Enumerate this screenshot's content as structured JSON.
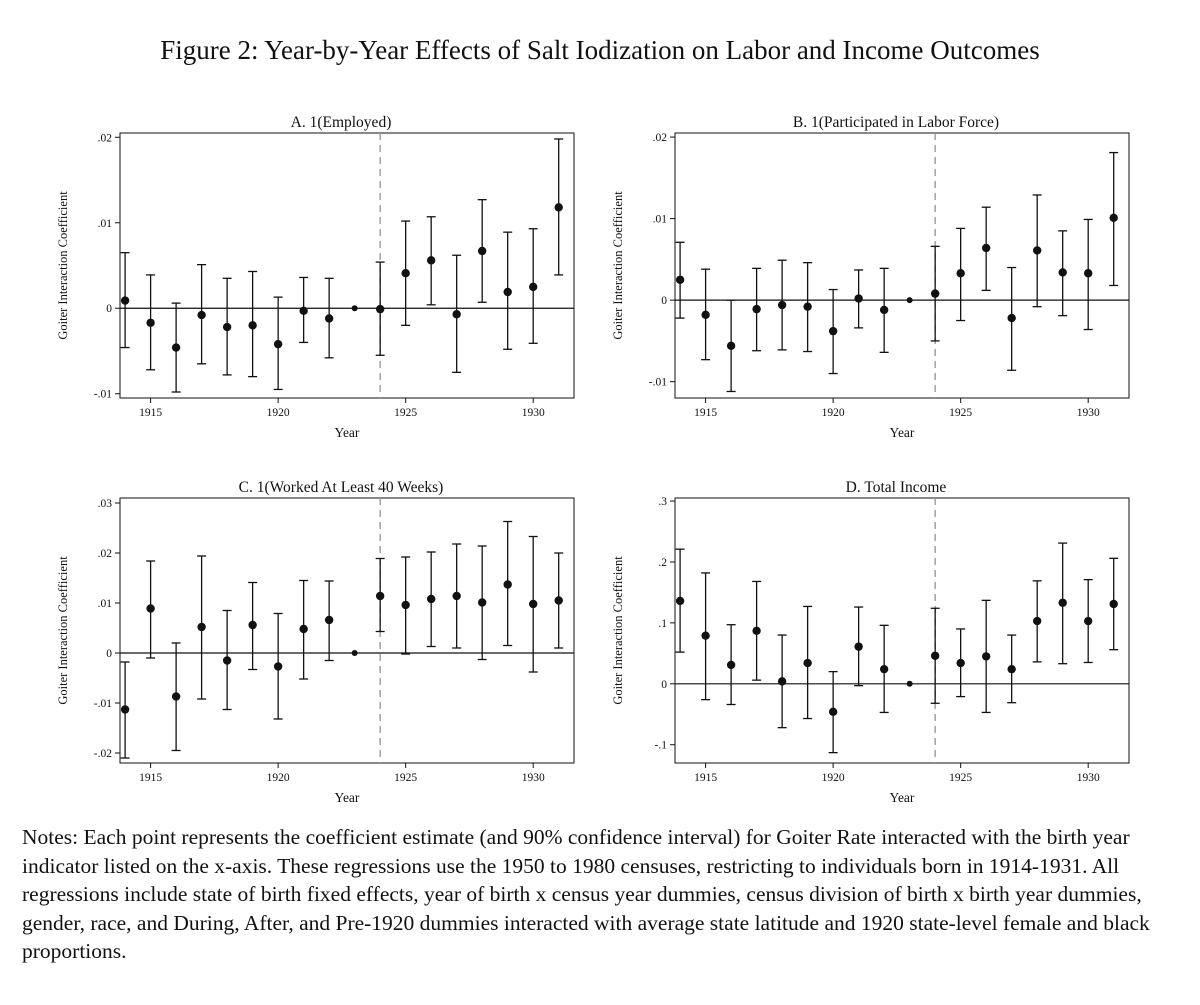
{
  "figure_title": "Figure 2: Year-by-Year Effects of Salt Iodization on Labor and Income Outcomes",
  "notes": "Notes: Each point represents the coefficient estimate (and 90% confidence interval) for Goiter Rate interacted with the birth year indicator listed on the x-axis. These regressions use the 1950 to 1980 censuses, restricting to individuals born in 1914-1931. All regressions include state of birth fixed effects, year of birth x census year dummies, census division of birth x birth year dummies, gender, race, and During, After, and Pre-1920 dummies interacted with average state latitude and 1920 state-level female and black proportions.",
  "colors": {
    "ink": "#111111",
    "refline": "#999999"
  },
  "chart_data": [
    {
      "id": "A",
      "type": "scatter",
      "title": "A. 1(Employed)",
      "xlabel": "Year",
      "ylabel": "Goiter Interaction Coefficient",
      "xlim": [
        1913.8,
        1931.6
      ],
      "ylim": [
        -0.0105,
        0.0205
      ],
      "xticks": [
        1915,
        1920,
        1925,
        1930
      ],
      "xtick_labels": [
        "1915",
        "1920",
        "1925",
        "1930"
      ],
      "yticks": [
        -0.01,
        0,
        0.01,
        0.02
      ],
      "ytick_labels": [
        "-.01",
        "0",
        ".01",
        ".02"
      ],
      "vline": 1924,
      "years": [
        1914,
        1915,
        1916,
        1917,
        1918,
        1919,
        1920,
        1921,
        1922,
        1923,
        1924,
        1925,
        1926,
        1927,
        1928,
        1929,
        1930,
        1931
      ],
      "estimates": [
        0.0009,
        -0.0017,
        -0.0046,
        -0.0008,
        -0.0022,
        -0.002,
        -0.0042,
        -0.0003,
        -0.0012,
        0.0,
        -0.0001,
        0.0041,
        0.0056,
        -0.0007,
        0.0067,
        0.0019,
        0.0025,
        0.0118
      ],
      "ci_lower": [
        -0.0046,
        -0.0072,
        -0.0098,
        -0.0065,
        -0.0078,
        -0.008,
        -0.0095,
        -0.004,
        -0.0058,
        0.0,
        -0.0055,
        -0.002,
        0.0004,
        -0.0075,
        0.0007,
        -0.0048,
        -0.0041,
        0.0039
      ],
      "ci_upper": [
        0.0065,
        0.0039,
        0.0006,
        0.0051,
        0.0035,
        0.0043,
        0.0013,
        0.0036,
        0.0035,
        0.0,
        0.0054,
        0.0102,
        0.0107,
        0.0062,
        0.0127,
        0.0089,
        0.0093,
        0.0198
      ]
    },
    {
      "id": "B",
      "type": "scatter",
      "title": "B. 1(Participated in Labor Force)",
      "xlabel": "Year",
      "ylabel": "Goiter Interaction Coefficient",
      "xlim": [
        1913.8,
        1931.6
      ],
      "ylim": [
        -0.012,
        0.0205
      ],
      "xticks": [
        1915,
        1920,
        1925,
        1930
      ],
      "xtick_labels": [
        "1915",
        "1920",
        "1925",
        "1930"
      ],
      "yticks": [
        -0.01,
        0,
        0.01,
        0.02
      ],
      "ytick_labels": [
        "-.01",
        "0",
        ".01",
        ".02"
      ],
      "vline": 1924,
      "years": [
        1914,
        1915,
        1916,
        1917,
        1918,
        1919,
        1920,
        1921,
        1922,
        1923,
        1924,
        1925,
        1926,
        1927,
        1928,
        1929,
        1930,
        1931
      ],
      "estimates": [
        0.0025,
        -0.0018,
        -0.0056,
        -0.0011,
        -0.0006,
        -0.0008,
        -0.0038,
        0.0002,
        -0.0012,
        0.0,
        0.0008,
        0.0033,
        0.0064,
        -0.0022,
        0.0061,
        0.0034,
        0.0033,
        0.0101
      ],
      "ci_lower": [
        -0.0022,
        -0.0073,
        -0.0112,
        -0.0062,
        -0.0061,
        -0.0063,
        -0.009,
        -0.0034,
        -0.0064,
        0.0,
        -0.005,
        -0.0025,
        0.0012,
        -0.0086,
        -0.0008,
        -0.0019,
        -0.0036,
        0.0018
      ],
      "ci_upper": [
        0.0071,
        0.0038,
        0.0,
        0.0039,
        0.0049,
        0.0046,
        0.0013,
        0.0037,
        0.0039,
        0.0,
        0.0066,
        0.0088,
        0.0114,
        0.004,
        0.0129,
        0.0085,
        0.0099,
        0.0181
      ]
    },
    {
      "id": "C",
      "type": "scatter",
      "title": "C. 1(Worked At Least 40 Weeks)",
      "xlabel": "Year",
      "ylabel": "Goiter Interaction Coefficient",
      "xlim": [
        1913.8,
        1931.6
      ],
      "ylim": [
        -0.022,
        0.031
      ],
      "xticks": [
        1915,
        1920,
        1925,
        1930
      ],
      "xtick_labels": [
        "1915",
        "1920",
        "1925",
        "1930"
      ],
      "yticks": [
        -0.02,
        -0.01,
        0,
        0.01,
        0.02,
        0.03
      ],
      "ytick_labels": [
        "-.02",
        "-.01",
        "0",
        ".01",
        ".02",
        ".03"
      ],
      "vline": 1924,
      "years": [
        1914,
        1915,
        1916,
        1917,
        1918,
        1919,
        1920,
        1921,
        1922,
        1923,
        1924,
        1925,
        1926,
        1927,
        1928,
        1929,
        1930,
        1931
      ],
      "estimates": [
        -0.0113,
        0.0089,
        -0.0087,
        0.0052,
        -0.0015,
        0.0056,
        -0.0027,
        0.0048,
        0.0066,
        0.0,
        0.0114,
        0.0096,
        0.0108,
        0.0114,
        0.0101,
        0.0137,
        0.0098,
        0.0105
      ],
      "ci_lower": [
        -0.021,
        -0.001,
        -0.0195,
        -0.0092,
        -0.0113,
        -0.0033,
        -0.0132,
        -0.0052,
        -0.0015,
        0.0,
        0.0043,
        -0.0002,
        0.0013,
        0.001,
        -0.0013,
        0.0015,
        -0.0038,
        0.001
      ],
      "ci_upper": [
        -0.0018,
        0.0184,
        0.002,
        0.0194,
        0.0085,
        0.0141,
        0.0079,
        0.0145,
        0.0144,
        0.0,
        0.0189,
        0.0192,
        0.0202,
        0.0218,
        0.0214,
        0.0263,
        0.0233,
        0.02
      ]
    },
    {
      "id": "D",
      "type": "scatter",
      "title": "D. Total Income",
      "xlabel": "Year",
      "ylabel": "Goiter Interaction Coefficient",
      "xlim": [
        1913.8,
        1931.6
      ],
      "ylim": [
        -0.13,
        0.305
      ],
      "xticks": [
        1915,
        1920,
        1925,
        1930
      ],
      "xtick_labels": [
        "1915",
        "1920",
        "1925",
        "1930"
      ],
      "yticks": [
        -0.1,
        0,
        0.1,
        0.2,
        0.3
      ],
      "ytick_labels": [
        "-.1",
        "0",
        ".1",
        ".2",
        ".3"
      ],
      "vline": 1924,
      "years": [
        1914,
        1915,
        1916,
        1917,
        1918,
        1919,
        1920,
        1921,
        1922,
        1923,
        1924,
        1925,
        1926,
        1927,
        1928,
        1929,
        1930,
        1931
      ],
      "estimates": [
        0.136,
        0.079,
        0.031,
        0.087,
        0.004,
        0.034,
        -0.046,
        0.061,
        0.024,
        0.0,
        0.046,
        0.034,
        0.045,
        0.024,
        0.103,
        0.133,
        0.103,
        0.131
      ],
      "ci_lower": [
        0.052,
        -0.026,
        -0.034,
        0.006,
        -0.072,
        -0.057,
        -0.113,
        -0.003,
        -0.047,
        0.0,
        -0.032,
        -0.021,
        -0.047,
        -0.031,
        0.036,
        0.033,
        0.035,
        0.056
      ],
      "ci_upper": [
        0.221,
        0.182,
        0.097,
        0.168,
        0.08,
        0.127,
        0.02,
        0.126,
        0.096,
        0.0,
        0.124,
        0.09,
        0.137,
        0.08,
        0.169,
        0.231,
        0.171,
        0.206
      ]
    }
  ]
}
